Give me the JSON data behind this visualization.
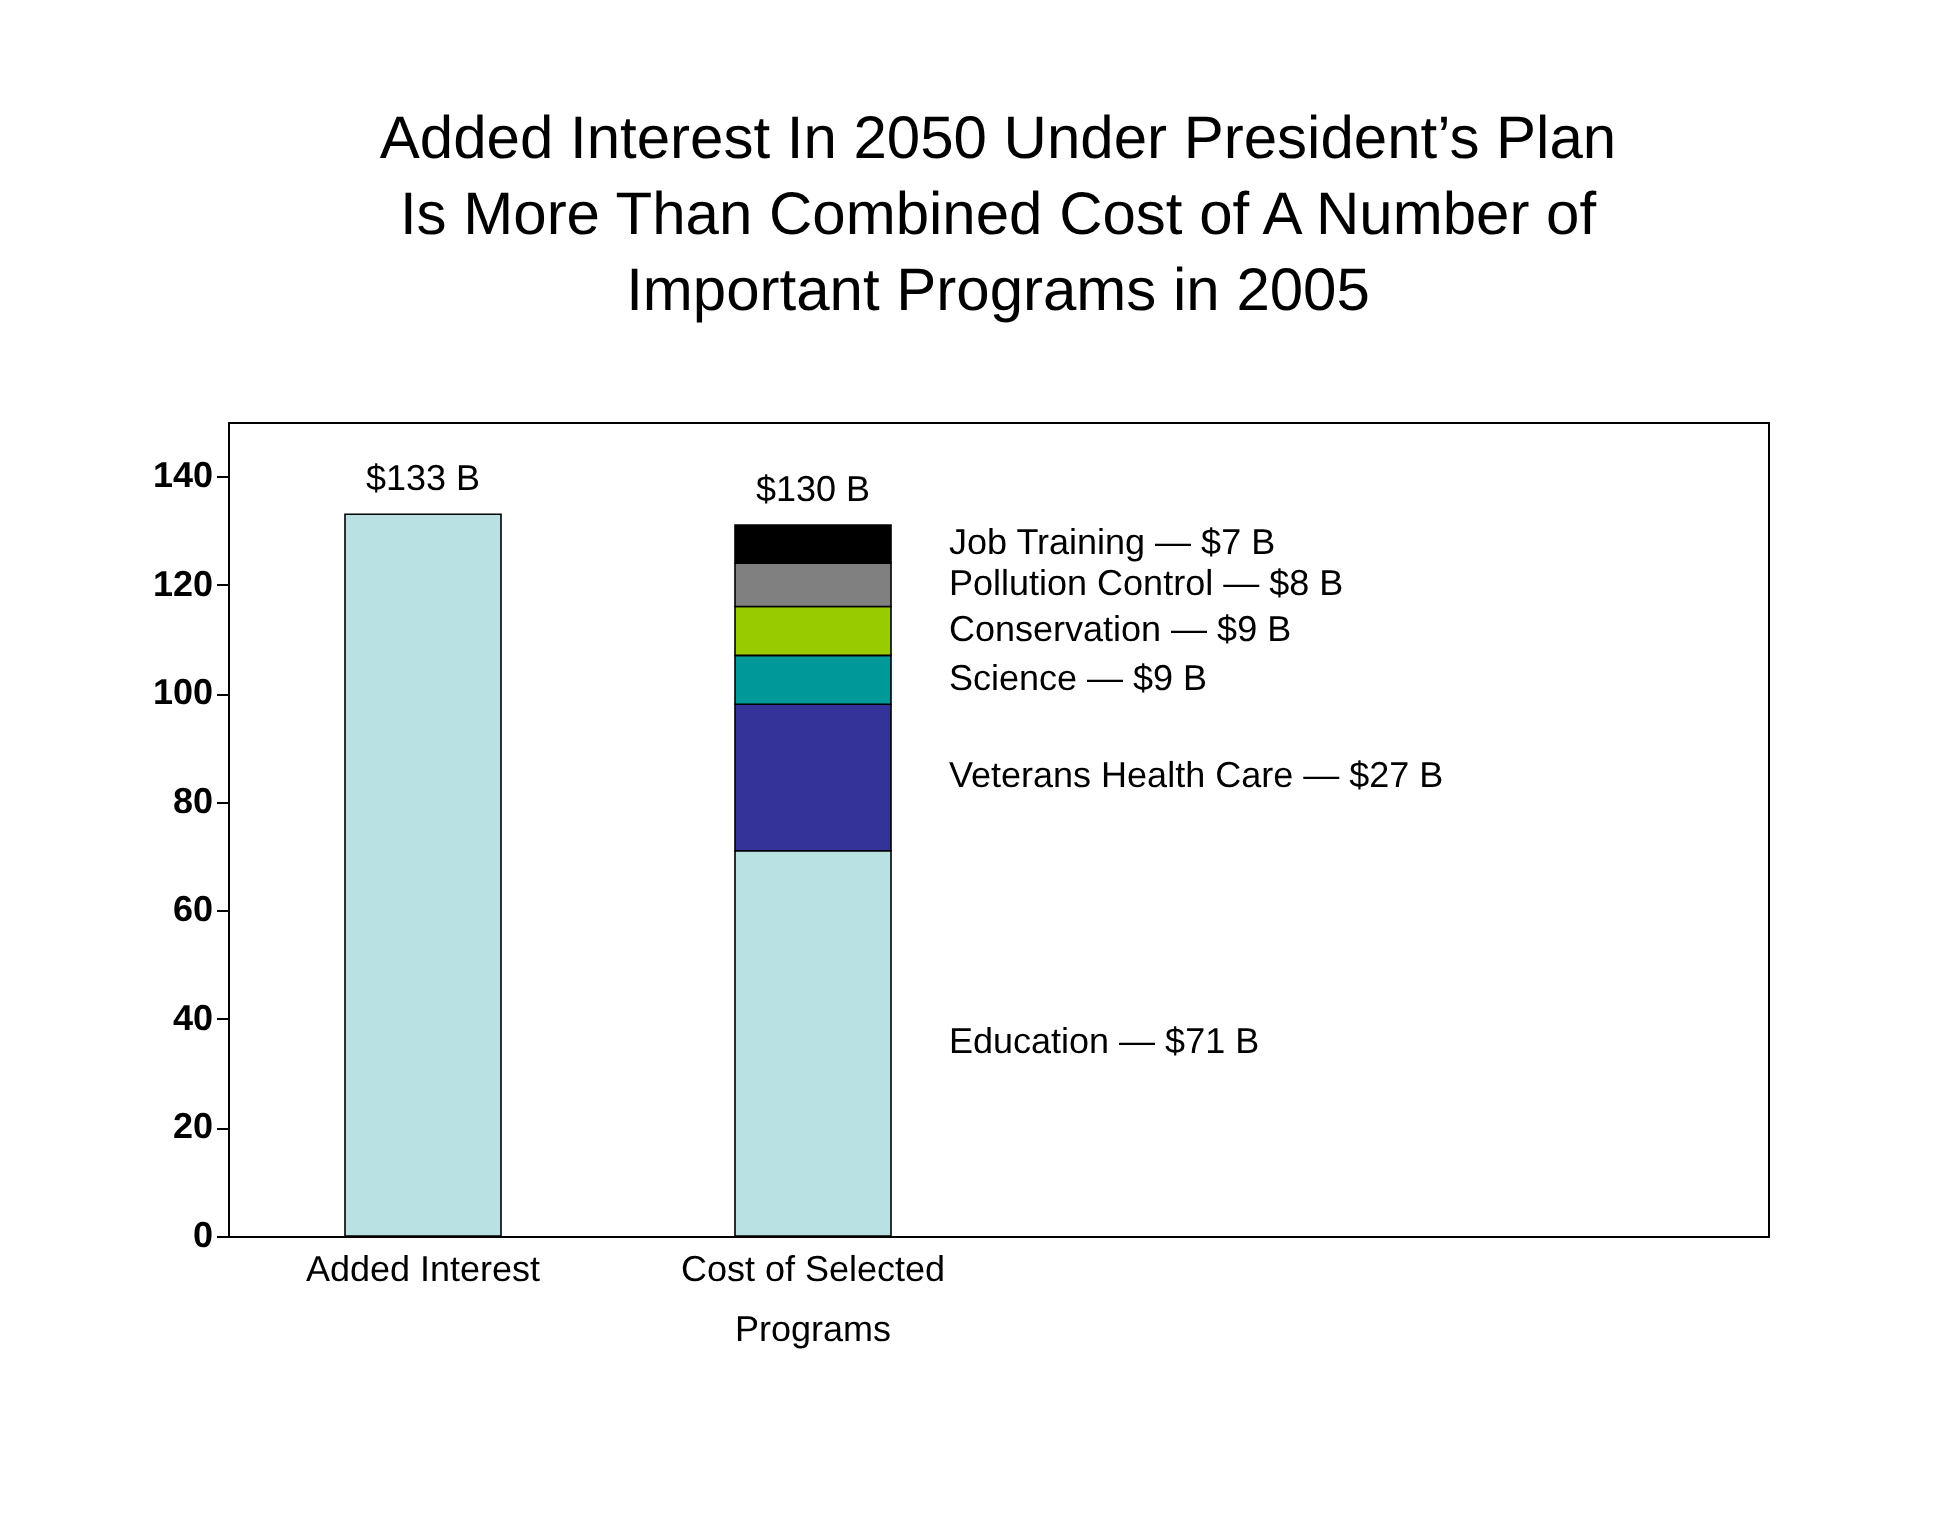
{
  "chart_data": {
    "type": "bar",
    "title": "Added Interest In 2050 Under President’s Plan Is More Than Combined Cost of A Number of Important Programs in 2005",
    "categories": [
      "Added Interest",
      "Cost of Selected Programs"
    ],
    "stacked": true,
    "series": [
      {
        "color": "#b9e0e3",
        "values": [
          133,
          null
        ]
      },
      {
        "name": "Education",
        "color": "#b9e0e3",
        "values": [
          null,
          71
        ],
        "value_labels": [
          null,
          "— $71 B"
        ]
      },
      {
        "name": "Veterans Health Care",
        "color": "#333399",
        "values": [
          null,
          27
        ],
        "value_labels": [
          null,
          "—  $27 B"
        ]
      },
      {
        "name": "Science",
        "color": "#009999",
        "values": [
          null,
          9
        ],
        "value_labels": [
          null,
          "— $9 B"
        ]
      },
      {
        "name": "Conservation",
        "color": "#99cc00",
        "values": [
          null,
          9
        ],
        "value_labels": [
          null,
          "—  $9 B"
        ]
      },
      {
        "name": "Pollution Control",
        "color": "#808080",
        "values": [
          null,
          8
        ],
        "value_labels": [
          null,
          "—  $8 B"
        ]
      },
      {
        "name": "Job Training",
        "color": "#000000",
        "values": [
          null,
          7
        ],
        "value_labels": [
          null,
          "—  $7 B"
        ]
      }
    ],
    "totals": [
      "$133 B",
      "$130 B"
    ],
    "ylim": [
      0,
      150
    ],
    "yticks": [
      0,
      20,
      40,
      60,
      80,
      100,
      120,
      140
    ],
    "grid": false
  }
}
